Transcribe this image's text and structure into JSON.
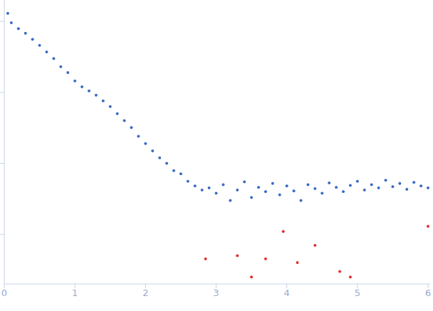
{
  "chart_data": {
    "type": "scatter",
    "log": "y",
    "tick_labels": "x",
    "grid": false,
    "xlim": [
      0,
      6.03
    ],
    "xticks": [
      0,
      1,
      2,
      3,
      4,
      5,
      6
    ],
    "ylim": [
      0.0002,
      2
    ],
    "yticks": [
      0.001,
      0.01,
      0.1,
      1
    ],
    "series": [
      {
        "color": "#3a6bc4",
        "marker": "circle",
        "x": [
          0.05,
          0.1,
          0.2,
          0.3,
          0.4,
          0.5,
          0.6,
          0.7,
          0.8,
          0.9,
          1.0,
          1.1,
          1.2,
          1.3,
          1.4,
          1.5,
          1.6,
          1.7,
          1.8,
          1.9,
          2.0,
          2.1,
          2.2,
          2.3,
          2.4,
          2.5,
          2.6,
          2.7,
          2.8,
          2.9,
          3.0,
          3.1,
          3.2,
          3.3,
          3.4,
          3.5,
          3.6,
          3.7,
          3.8,
          3.9,
          4.0,
          4.1,
          4.2,
          4.3,
          4.4,
          4.5,
          4.6,
          4.7,
          4.8,
          4.9,
          5.0,
          5.1,
          5.2,
          5.3,
          5.4,
          5.5,
          5.6,
          5.7,
          5.8,
          5.9,
          6.0
        ],
        "values": [
          1.3,
          0.955,
          0.79,
          0.68,
          0.56,
          0.46,
          0.37,
          0.3,
          0.23,
          0.19,
          0.145,
          0.12,
          0.105,
          0.091,
          0.076,
          0.063,
          0.05,
          0.04,
          0.032,
          0.024,
          0.019,
          0.015,
          0.012,
          0.01,
          0.0079,
          0.0071,
          0.0056,
          0.0048,
          0.0042,
          0.0045,
          0.0038,
          0.005,
          0.003,
          0.0042,
          0.0055,
          0.0033,
          0.0046,
          0.004,
          0.0052,
          0.0036,
          0.0048,
          0.0041,
          0.003,
          0.005,
          0.0044,
          0.0038,
          0.0053,
          0.0046,
          0.004,
          0.0049,
          0.0056,
          0.0042,
          0.005,
          0.0045,
          0.0058,
          0.0047,
          0.0052,
          0.0043,
          0.0054,
          0.0048,
          0.0045
        ]
      },
      {
        "color": "#e03030",
        "marker": "circle",
        "x": [
          2.85,
          3.3,
          3.5,
          3.7,
          3.95,
          4.15,
          4.4,
          4.75,
          4.9,
          6.0
        ],
        "values": [
          0.00045,
          0.0005,
          0.00025,
          0.00045,
          0.0011,
          0.0004,
          0.0007,
          0.0003,
          0.00025,
          0.0013
        ]
      }
    ]
  }
}
